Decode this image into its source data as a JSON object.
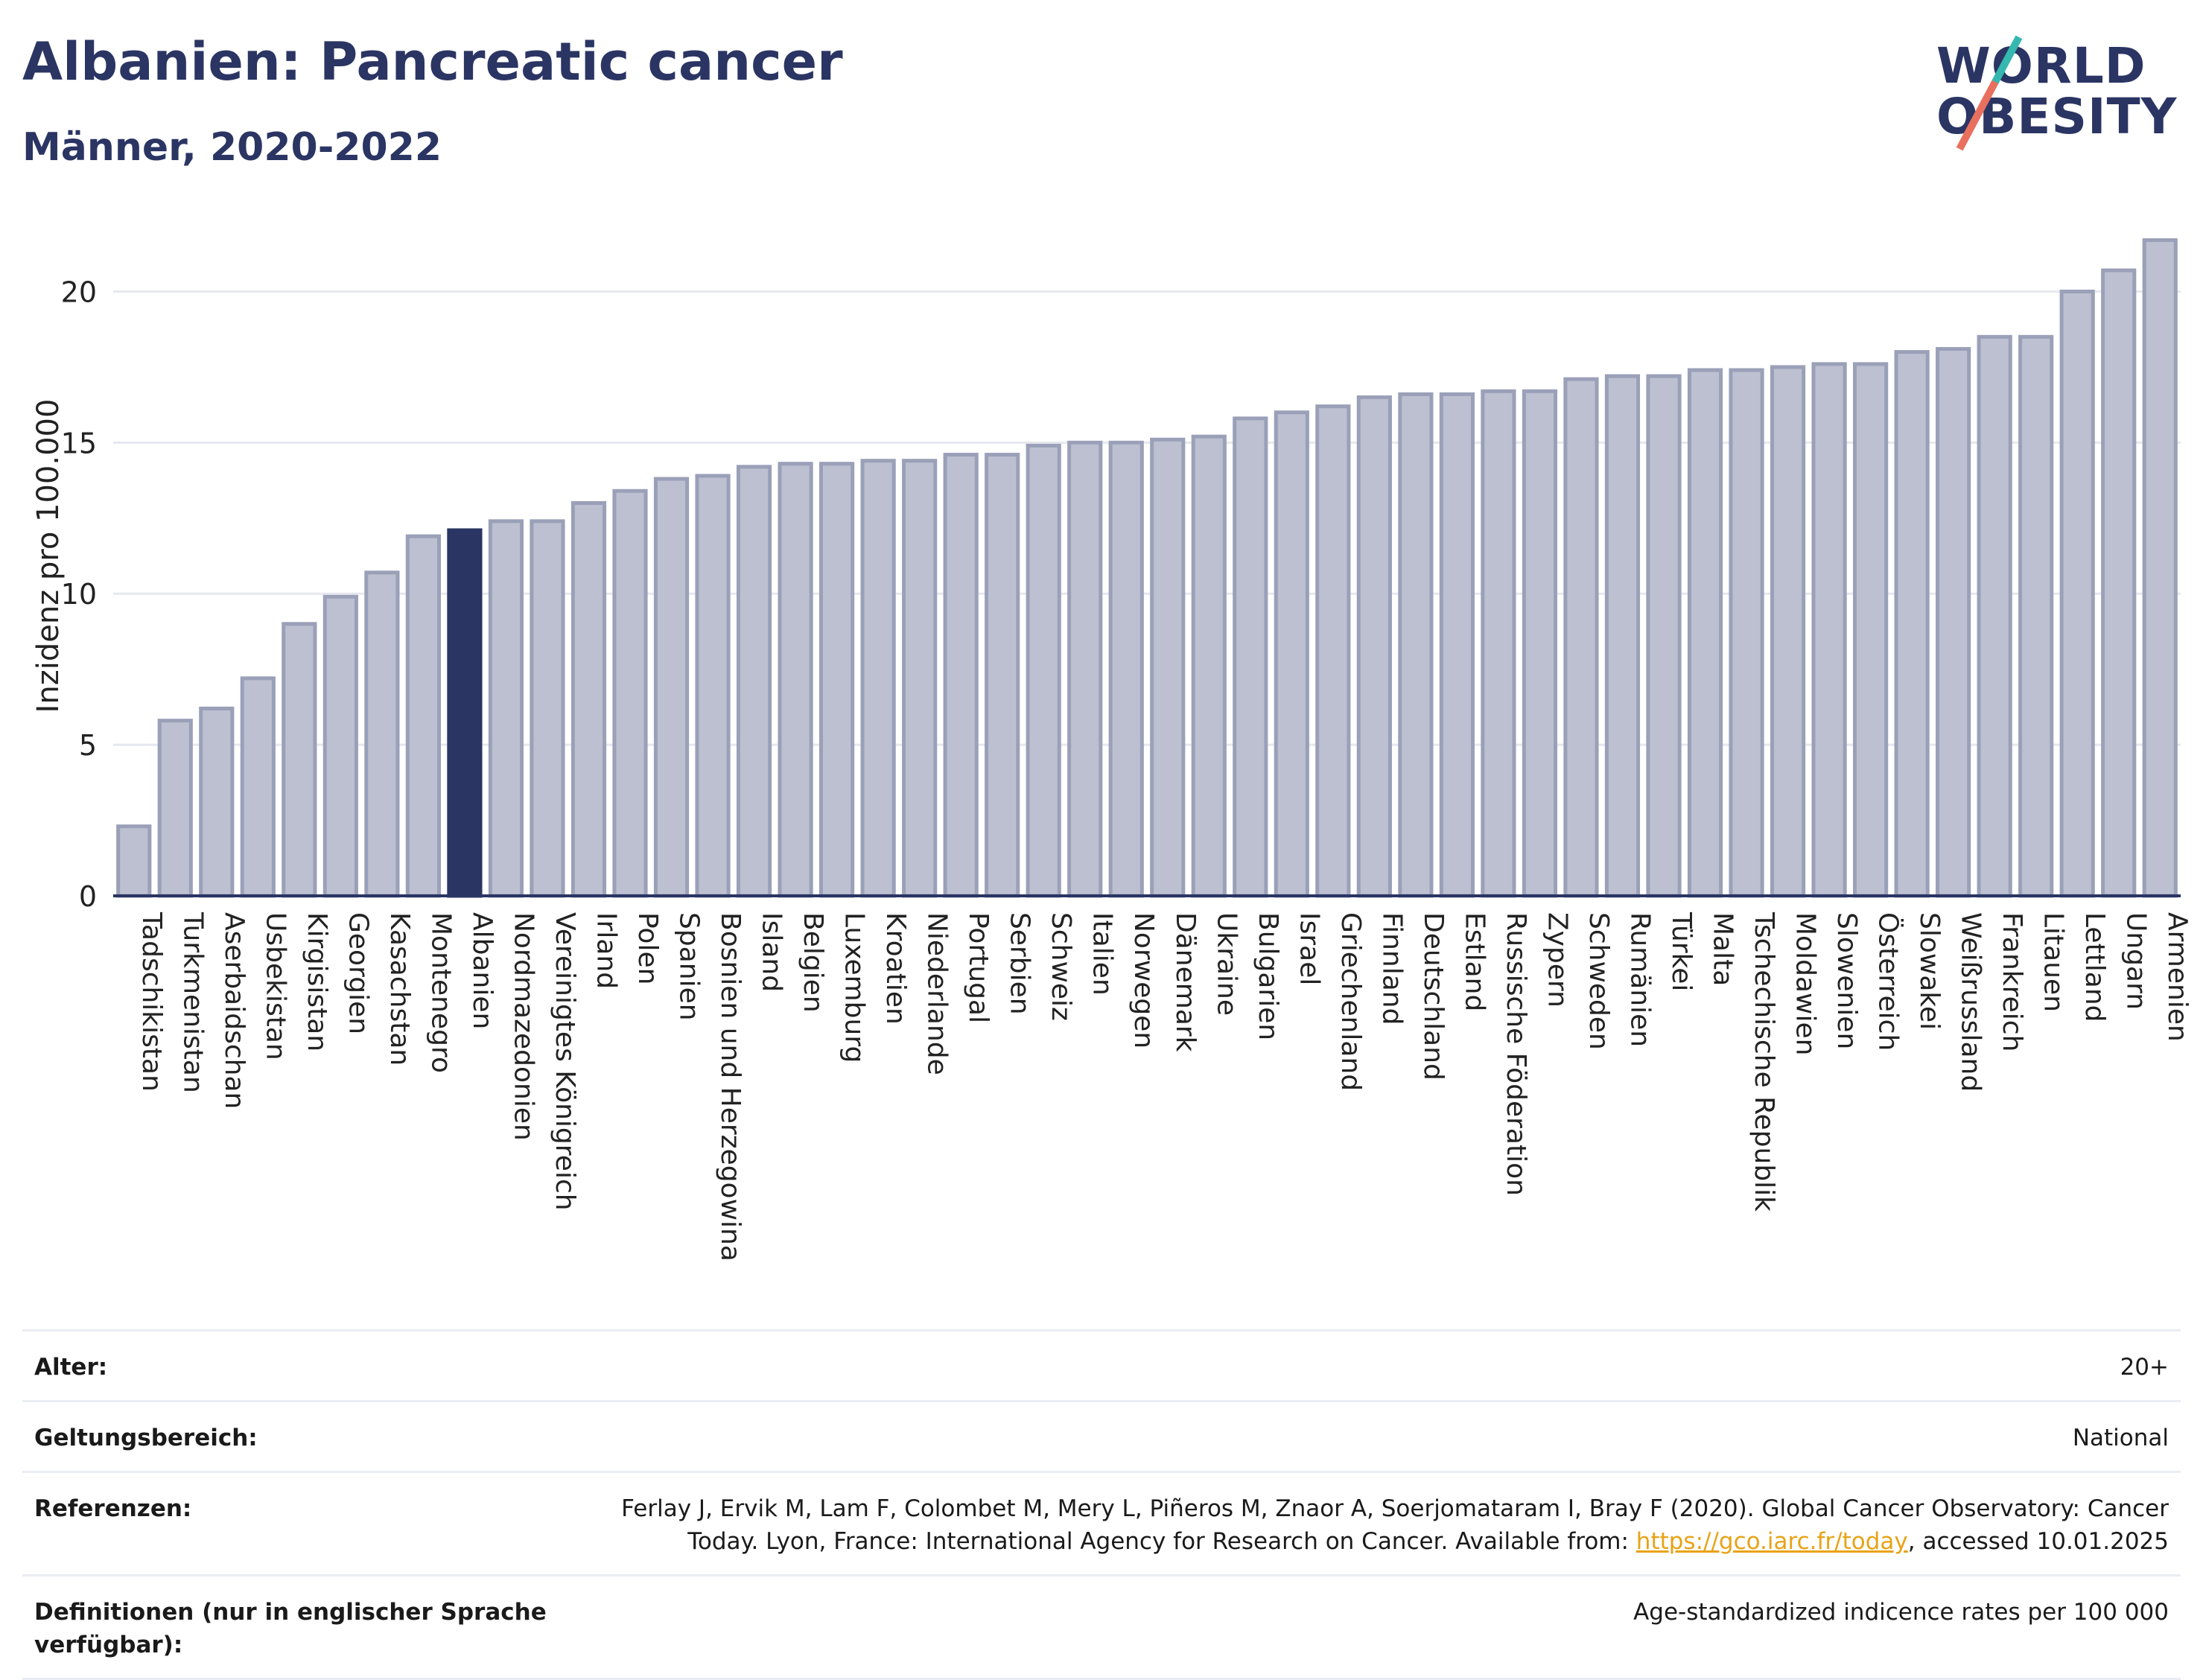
{
  "header": {
    "title": "Albanien: Pancreatic cancer",
    "subtitle": "Männer, 2020-2022"
  },
  "logo": {
    "line1": "WORLD",
    "line2": "OBESITY"
  },
  "colors": {
    "bar": "#bcc0d0",
    "bar_border": "#9aa0b8",
    "highlight": "#2b3563",
    "grid": "#e6e8ee",
    "axis": "#2b3563"
  },
  "chart_data": {
    "type": "bar",
    "ylabel": "Inzidenz pro 100.000",
    "ylim": [
      0,
      22.5
    ],
    "yticks": [
      0,
      5,
      10,
      15,
      20
    ],
    "highlight": "Albanien",
    "categories": [
      "Tadschikistan",
      "Turkmenistan",
      "Aserbaidschan",
      "Usbekistan",
      "Kirgisistan",
      "Georgien",
      "Kasachstan",
      "Montenegro",
      "Albanien",
      "Nordmazedonien",
      "Vereinigtes Königreich",
      "Irland",
      "Polen",
      "Spanien",
      "Bosnien und Herzegowina",
      "Island",
      "Belgien",
      "Luxemburg",
      "Kroatien",
      "Niederlande",
      "Portugal",
      "Serbien",
      "Schweiz",
      "Italien",
      "Norwegen",
      "Dänemark",
      "Ukraine",
      "Bulgarien",
      "Israel",
      "Griechenland",
      "Finnland",
      "Deutschland",
      "Estland",
      "Russische Föderation",
      "Zypern",
      "Schweden",
      "Rumänien",
      "Türkei",
      "Malta",
      "Tschechische Republik",
      "Moldawien",
      "Slowenien",
      "Österreich",
      "Slowakei",
      "Weißrussland",
      "Frankreich",
      "Litauen",
      "Lettland",
      "Ungarn",
      "Armenien"
    ],
    "values": [
      2.3,
      5.8,
      6.2,
      7.2,
      9.0,
      9.9,
      10.7,
      11.9,
      12.1,
      12.4,
      12.4,
      13.0,
      13.4,
      13.8,
      13.9,
      14.2,
      14.3,
      14.3,
      14.4,
      14.4,
      14.6,
      14.6,
      14.9,
      15.0,
      15.0,
      15.1,
      15.2,
      15.8,
      16.0,
      16.2,
      16.5,
      16.6,
      16.6,
      16.7,
      16.7,
      17.1,
      17.2,
      17.2,
      17.4,
      17.4,
      17.5,
      17.6,
      17.6,
      18.0,
      18.1,
      18.5,
      18.5,
      20.0,
      20.7,
      21.7
    ]
  },
  "meta": {
    "age_label": "Alter:",
    "age_value": "20+",
    "scope_label": "Geltungsbereich:",
    "scope_value": "National",
    "ref_label": "Referenzen:",
    "ref_text": "Ferlay J, Ervik M, Lam F, Colombet M, Mery L, Piñeros M, Znaor A, Soerjomataram I, Bray F (2020). Global Cancer Observatory: Cancer Today. Lyon, France: International Agency for Research on Cancer. Available from: ",
    "ref_link": "https://gco.iarc.fr/today",
    "ref_suffix": ", accessed 10.01.2025",
    "def_label": "Definitionen (nur in englischer Sprache verfügbar):",
    "def_value": "Age-standardized indicence rates per 100 000"
  }
}
